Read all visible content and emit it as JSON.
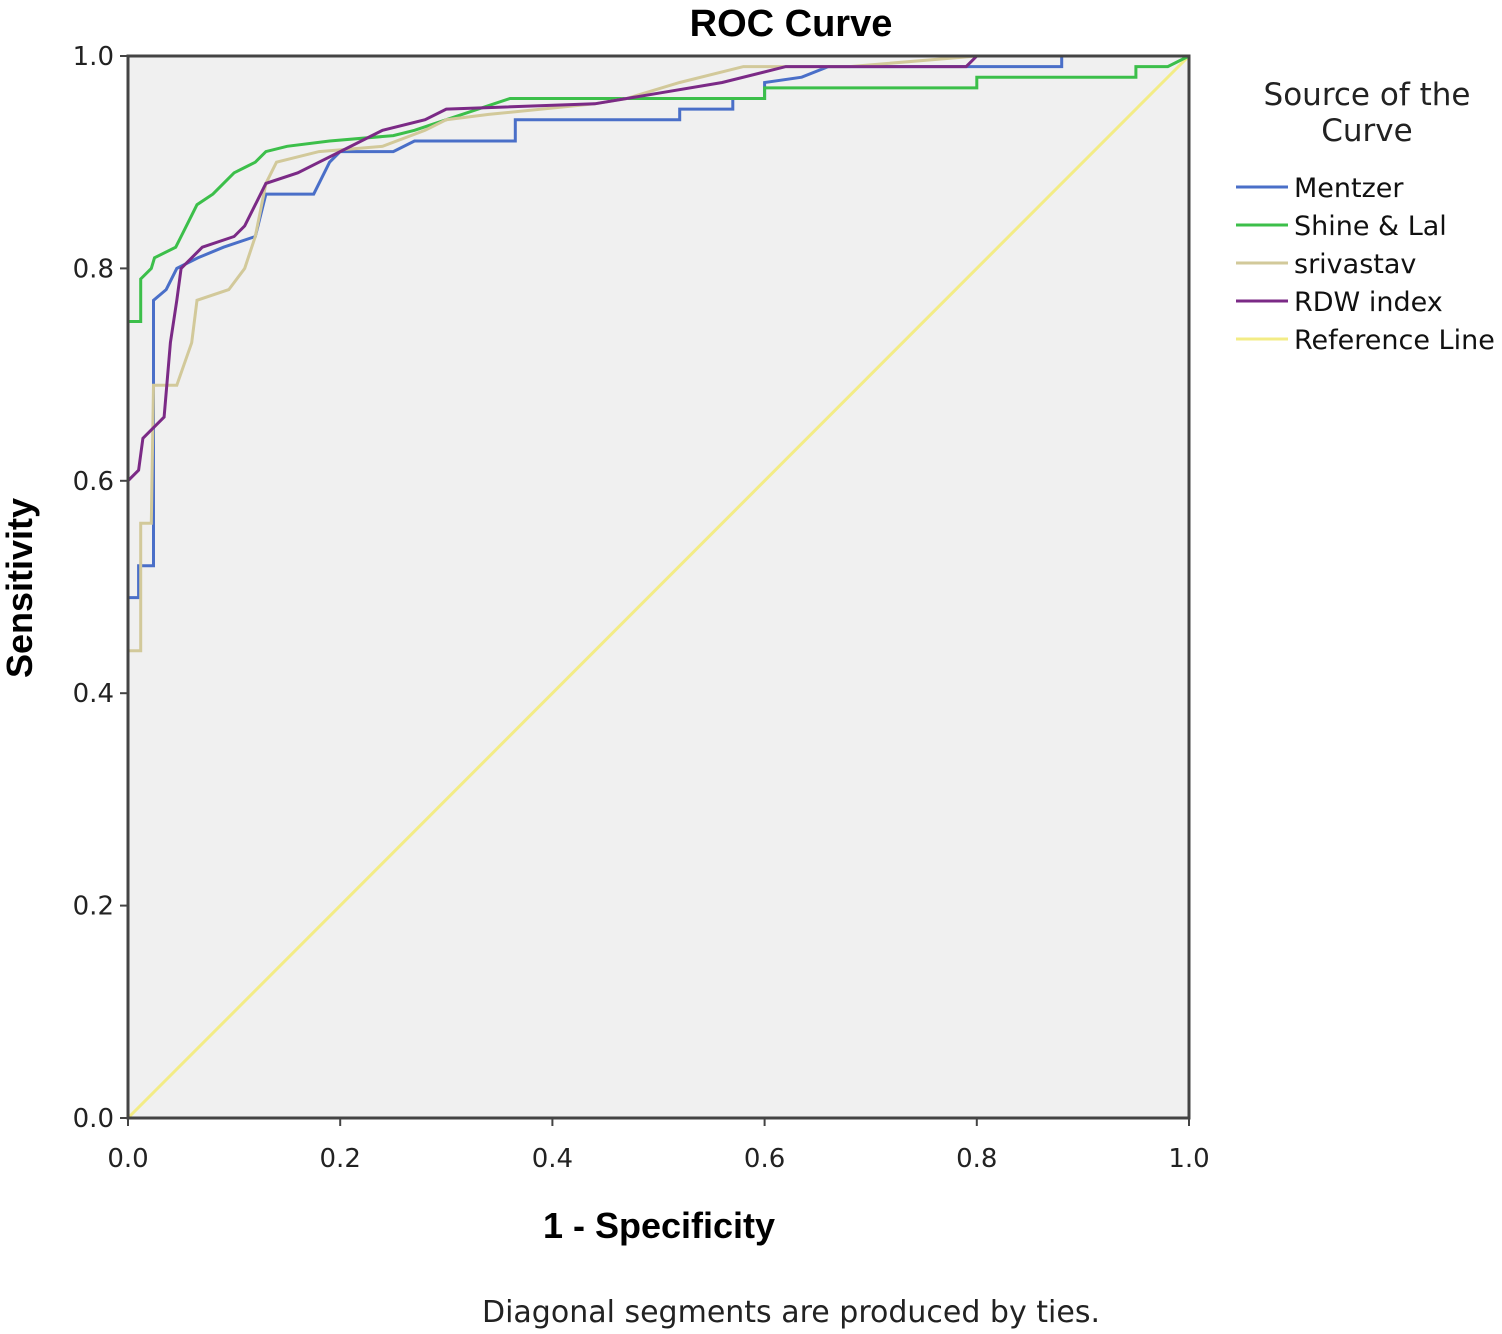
{
  "chart_data": {
    "type": "line",
    "title": "ROC Curve",
    "xlabel": "1 - Specificity",
    "ylabel": "Sensitivity",
    "xlim": [
      0,
      1
    ],
    "ylim": [
      0,
      1
    ],
    "x_ticks": [
      "0.0",
      "0.2",
      "0.4",
      "0.6",
      "0.8",
      "1.0"
    ],
    "y_ticks": [
      "0.0",
      "0.2",
      "0.4",
      "0.6",
      "0.8",
      "1.0"
    ],
    "grid": false,
    "plot_background": "#f0f0f0",
    "legend_title_lines": [
      "Source of the",
      "Curve"
    ],
    "legend_placement": "right",
    "footnote": "Diagonal segments are produced by ties.",
    "series": [
      {
        "name": "Mentzer",
        "color": "#4a6fc8",
        "points": [
          [
            0,
            0
          ],
          [
            0,
            0.49
          ],
          [
            0.01,
            0.49
          ],
          [
            0.01,
            0.52
          ],
          [
            0.024,
            0.52
          ],
          [
            0.024,
            0.69
          ],
          [
            0.024,
            0.77
          ],
          [
            0.036,
            0.78
          ],
          [
            0.046,
            0.8
          ],
          [
            0.066,
            0.81
          ],
          [
            0.09,
            0.82
          ],
          [
            0.12,
            0.83
          ],
          [
            0.13,
            0.87
          ],
          [
            0.175,
            0.87
          ],
          [
            0.19,
            0.9
          ],
          [
            0.2,
            0.91
          ],
          [
            0.25,
            0.91
          ],
          [
            0.27,
            0.92
          ],
          [
            0.365,
            0.92
          ],
          [
            0.365,
            0.94
          ],
          [
            0.52,
            0.94
          ],
          [
            0.52,
            0.95
          ],
          [
            0.57,
            0.95
          ],
          [
            0.57,
            0.96
          ],
          [
            0.6,
            0.96
          ],
          [
            0.6,
            0.975
          ],
          [
            0.635,
            0.98
          ],
          [
            0.66,
            0.99
          ],
          [
            0.88,
            0.99
          ],
          [
            0.88,
            1.0
          ],
          [
            1.0,
            1.0
          ]
        ]
      },
      {
        "name": "Shine & Lal",
        "color": "#3cbf4a",
        "points": [
          [
            0,
            0
          ],
          [
            0,
            0.6
          ],
          [
            0,
            0.75
          ],
          [
            0.012,
            0.75
          ],
          [
            0.012,
            0.79
          ],
          [
            0.022,
            0.8
          ],
          [
            0.025,
            0.81
          ],
          [
            0.045,
            0.82
          ],
          [
            0.05,
            0.83
          ],
          [
            0.06,
            0.85
          ],
          [
            0.065,
            0.86
          ],
          [
            0.08,
            0.87
          ],
          [
            0.09,
            0.88
          ],
          [
            0.1,
            0.89
          ],
          [
            0.11,
            0.895
          ],
          [
            0.12,
            0.9
          ],
          [
            0.13,
            0.91
          ],
          [
            0.15,
            0.915
          ],
          [
            0.19,
            0.92
          ],
          [
            0.25,
            0.925
          ],
          [
            0.27,
            0.93
          ],
          [
            0.3,
            0.94
          ],
          [
            0.36,
            0.96
          ],
          [
            0.6,
            0.96
          ],
          [
            0.6,
            0.97
          ],
          [
            0.8,
            0.97
          ],
          [
            0.8,
            0.98
          ],
          [
            0.95,
            0.98
          ],
          [
            0.95,
            0.99
          ],
          [
            0.98,
            0.99
          ],
          [
            1.0,
            1.0
          ]
        ]
      },
      {
        "name": "srivastav",
        "color": "#d2c99a",
        "points": [
          [
            0,
            0
          ],
          [
            0,
            0.44
          ],
          [
            0.012,
            0.44
          ],
          [
            0.012,
            0.56
          ],
          [
            0.022,
            0.56
          ],
          [
            0.024,
            0.69
          ],
          [
            0.046,
            0.69
          ],
          [
            0.06,
            0.73
          ],
          [
            0.065,
            0.77
          ],
          [
            0.095,
            0.78
          ],
          [
            0.11,
            0.8
          ],
          [
            0.12,
            0.83
          ],
          [
            0.13,
            0.88
          ],
          [
            0.14,
            0.9
          ],
          [
            0.18,
            0.91
          ],
          [
            0.24,
            0.915
          ],
          [
            0.28,
            0.93
          ],
          [
            0.3,
            0.94
          ],
          [
            0.34,
            0.945
          ],
          [
            0.44,
            0.955
          ],
          [
            0.47,
            0.96
          ],
          [
            0.52,
            0.975
          ],
          [
            0.58,
            0.99
          ],
          [
            0.68,
            0.99
          ],
          [
            0.8,
            1.0
          ],
          [
            1.0,
            1.0
          ]
        ]
      },
      {
        "name": "RDW index",
        "color": "#7b2a86",
        "points": [
          [
            0,
            0
          ],
          [
            0,
            0.6
          ],
          [
            0.01,
            0.61
          ],
          [
            0.014,
            0.64
          ],
          [
            0.024,
            0.65
          ],
          [
            0.034,
            0.66
          ],
          [
            0.04,
            0.73
          ],
          [
            0.046,
            0.77
          ],
          [
            0.05,
            0.8
          ],
          [
            0.06,
            0.81
          ],
          [
            0.07,
            0.82
          ],
          [
            0.1,
            0.83
          ],
          [
            0.11,
            0.84
          ],
          [
            0.12,
            0.86
          ],
          [
            0.13,
            0.88
          ],
          [
            0.16,
            0.89
          ],
          [
            0.18,
            0.9
          ],
          [
            0.2,
            0.91
          ],
          [
            0.24,
            0.93
          ],
          [
            0.28,
            0.94
          ],
          [
            0.3,
            0.95
          ],
          [
            0.44,
            0.955
          ],
          [
            0.5,
            0.965
          ],
          [
            0.56,
            0.975
          ],
          [
            0.62,
            0.99
          ],
          [
            0.79,
            0.99
          ],
          [
            0.8,
            1.0
          ],
          [
            1.0,
            1.0
          ]
        ]
      },
      {
        "name": "Reference Line",
        "color": "#f3ec86",
        "points": [
          [
            0,
            0
          ],
          [
            1,
            1
          ]
        ]
      }
    ]
  }
}
